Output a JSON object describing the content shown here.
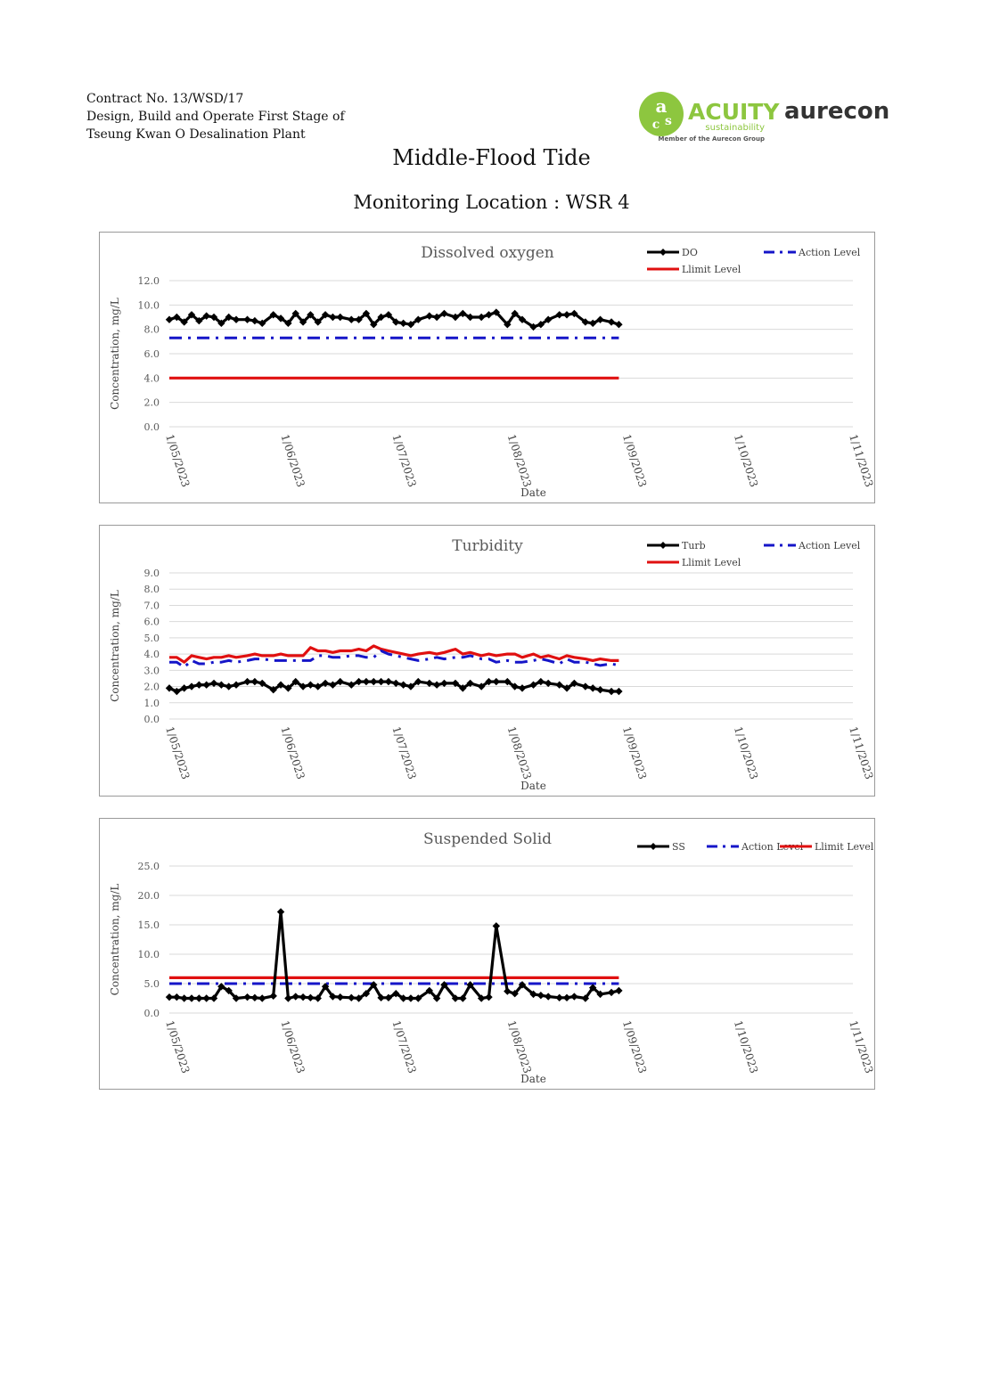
{
  "header": {
    "lines": [
      "Contract No. 13/WSD/17",
      "Design, Build and Operate First Stage of",
      "Tseung Kwan O Desalination Plant"
    ],
    "logo_left_text": "ACUITY",
    "logo_left_sub": "sustainability",
    "logo_left_tag": "Member of the Aurecon Group",
    "logo_right_text": "aurecon",
    "colors": {
      "acuity_green": "#8dc63f",
      "aurecon_dark": "#333333"
    }
  },
  "page": {
    "title": "Middle-Flood Tide",
    "subtitle": "Monitoring Location : WSR 4"
  },
  "chart_data": [
    {
      "type": "line",
      "title": "Dissolved oxygen",
      "xlabel": "Date",
      "ylabel": "Concentration, mg/L",
      "ylim": [
        0,
        12
      ],
      "yticks": [
        "0.0",
        "2.0",
        "4.0",
        "6.0",
        "8.0",
        "10.0",
        "12.0"
      ],
      "xlim": [
        "2023-05-01",
        "2023-11-01"
      ],
      "xticks": [
        "1/05/2023",
        "1/06/2023",
        "1/07/2023",
        "1/08/2023",
        "1/09/2023",
        "1/10/2023",
        "1/11/2023"
      ],
      "x_dates": [
        "2023-05-01",
        "2023-05-03",
        "2023-05-05",
        "2023-05-07",
        "2023-05-09",
        "2023-05-11",
        "2023-05-13",
        "2023-05-15",
        "2023-05-17",
        "2023-05-19",
        "2023-05-22",
        "2023-05-24",
        "2023-05-26",
        "2023-05-29",
        "2023-05-31",
        "2023-06-02",
        "2023-06-04",
        "2023-06-06",
        "2023-06-08",
        "2023-06-10",
        "2023-06-12",
        "2023-06-14",
        "2023-06-16",
        "2023-06-19",
        "2023-06-21",
        "2023-06-23",
        "2023-06-25",
        "2023-06-27",
        "2023-06-29",
        "2023-07-01",
        "2023-07-03",
        "2023-07-05",
        "2023-07-07",
        "2023-07-10",
        "2023-07-12",
        "2023-07-14",
        "2023-07-17",
        "2023-07-19",
        "2023-07-21",
        "2023-07-24",
        "2023-07-26",
        "2023-07-28",
        "2023-07-31",
        "2023-08-02",
        "2023-08-04",
        "2023-08-07",
        "2023-08-09",
        "2023-08-11",
        "2023-08-14",
        "2023-08-16",
        "2023-08-18",
        "2023-08-21",
        "2023-08-23",
        "2023-08-25",
        "2023-08-28",
        "2023-08-30"
      ],
      "legend": [
        "DO",
        "Action Level",
        "Llimit Level"
      ],
      "legend_position": "top-right",
      "grid": "horizontal",
      "series": [
        {
          "name": "DO",
          "color": "#000000",
          "style": "solid-marker",
          "values": [
            8.8,
            9.0,
            8.6,
            9.2,
            8.7,
            9.1,
            9.0,
            8.5,
            9.0,
            8.8,
            8.8,
            8.7,
            8.5,
            9.2,
            8.9,
            8.5,
            9.3,
            8.6,
            9.2,
            8.6,
            9.2,
            9.0,
            9.0,
            8.8,
            8.8,
            9.3,
            8.4,
            9.0,
            9.2,
            8.6,
            8.5,
            8.4,
            8.8,
            9.1,
            9.0,
            9.3,
            9.0,
            9.3,
            9.0,
            9.0,
            9.2,
            9.4,
            8.4,
            9.3,
            8.8,
            8.2,
            8.4,
            8.8,
            9.2,
            9.2,
            9.3,
            8.6,
            8.5,
            8.8,
            8.6,
            8.4
          ]
        },
        {
          "name": "Action Level",
          "color": "#1515c8",
          "style": "dashdot",
          "constant": 7.3,
          "range": [
            "2023-05-01",
            "2023-08-30"
          ]
        },
        {
          "name": "Llimit Level",
          "color": "#e01010",
          "style": "solid",
          "constant": 4.0,
          "range": [
            "2023-05-01",
            "2023-08-30"
          ]
        }
      ]
    },
    {
      "type": "line",
      "title": "Turbidity",
      "xlabel": "Date",
      "ylabel": "Concentration, mg/L",
      "ylim": [
        0,
        9
      ],
      "yticks": [
        "0.0",
        "1.0",
        "2.0",
        "3.0",
        "4.0",
        "5.0",
        "6.0",
        "7.0",
        "8.0",
        "9.0"
      ],
      "xlim": [
        "2023-05-01",
        "2023-11-01"
      ],
      "xticks": [
        "1/05/2023",
        "1/06/2023",
        "1/07/2023",
        "1/08/2023",
        "1/09/2023",
        "1/10/2023",
        "1/11/2023"
      ],
      "x_dates": [
        "2023-05-01",
        "2023-05-03",
        "2023-05-05",
        "2023-05-07",
        "2023-05-09",
        "2023-05-11",
        "2023-05-13",
        "2023-05-15",
        "2023-05-17",
        "2023-05-19",
        "2023-05-22",
        "2023-05-24",
        "2023-05-26",
        "2023-05-29",
        "2023-05-31",
        "2023-06-02",
        "2023-06-04",
        "2023-06-06",
        "2023-06-08",
        "2023-06-10",
        "2023-06-12",
        "2023-06-14",
        "2023-06-16",
        "2023-06-19",
        "2023-06-21",
        "2023-06-23",
        "2023-06-25",
        "2023-06-27",
        "2023-06-29",
        "2023-07-01",
        "2023-07-03",
        "2023-07-05",
        "2023-07-07",
        "2023-07-10",
        "2023-07-12",
        "2023-07-14",
        "2023-07-17",
        "2023-07-19",
        "2023-07-21",
        "2023-07-24",
        "2023-07-26",
        "2023-07-28",
        "2023-07-31",
        "2023-08-02",
        "2023-08-04",
        "2023-08-07",
        "2023-08-09",
        "2023-08-11",
        "2023-08-14",
        "2023-08-16",
        "2023-08-18",
        "2023-08-21",
        "2023-08-23",
        "2023-08-25",
        "2023-08-28",
        "2023-08-30"
      ],
      "legend": [
        "Turb",
        "Action Level",
        "Llimit Level"
      ],
      "legend_position": "top-right",
      "grid": "horizontal",
      "series": [
        {
          "name": "Turb",
          "color": "#000000",
          "style": "solid-marker",
          "values": [
            1.9,
            1.7,
            1.9,
            2.0,
            2.1,
            2.1,
            2.2,
            2.1,
            2.0,
            2.1,
            2.3,
            2.3,
            2.2,
            1.8,
            2.1,
            1.9,
            2.3,
            2.0,
            2.1,
            2.0,
            2.2,
            2.1,
            2.3,
            2.1,
            2.3,
            2.3,
            2.3,
            2.3,
            2.3,
            2.2,
            2.1,
            2.0,
            2.3,
            2.2,
            2.1,
            2.2,
            2.2,
            1.9,
            2.2,
            2.0,
            2.3,
            2.3,
            2.3,
            2.0,
            1.9,
            2.1,
            2.3,
            2.2,
            2.1,
            1.9,
            2.2,
            2.0,
            1.9,
            1.8,
            1.7,
            1.7
          ]
        },
        {
          "name": "Action Level",
          "color": "#1515c8",
          "style": "dashdot",
          "values": [
            3.5,
            3.5,
            3.2,
            3.6,
            3.4,
            3.4,
            3.5,
            3.5,
            3.6,
            3.5,
            3.6,
            3.7,
            3.7,
            3.6,
            3.6,
            3.6,
            3.6,
            3.6,
            3.6,
            3.9,
            3.9,
            3.8,
            3.8,
            3.9,
            3.9,
            3.8,
            3.8,
            4.2,
            4.0,
            3.9,
            3.8,
            3.7,
            3.6,
            3.7,
            3.8,
            3.7,
            3.8,
            3.8,
            3.9,
            3.7,
            3.7,
            3.5,
            3.6,
            3.5,
            3.5,
            3.6,
            3.7,
            3.6,
            3.4,
            3.7,
            3.5,
            3.5,
            3.4,
            3.3,
            3.4,
            3.3
          ]
        },
        {
          "name": "Llimit Level",
          "color": "#e01010",
          "style": "solid",
          "values": [
            3.8,
            3.8,
            3.5,
            3.9,
            3.8,
            3.7,
            3.8,
            3.8,
            3.9,
            3.8,
            3.9,
            4.0,
            3.9,
            3.9,
            4.0,
            3.9,
            3.9,
            3.9,
            4.4,
            4.2,
            4.2,
            4.1,
            4.2,
            4.2,
            4.3,
            4.2,
            4.5,
            4.3,
            4.2,
            4.1,
            4.0,
            3.9,
            4.0,
            4.1,
            4.0,
            4.1,
            4.3,
            4.0,
            4.1,
            3.9,
            4.0,
            3.9,
            4.0,
            4.0,
            3.8,
            4.0,
            3.8,
            3.9,
            3.7,
            3.9,
            3.8,
            3.7,
            3.6,
            3.7,
            3.6,
            3.6
          ]
        }
      ]
    },
    {
      "type": "line",
      "title": "Suspended Solid",
      "xlabel": "Date",
      "ylabel": "Concentration, mg/L",
      "ylim": [
        0,
        25
      ],
      "yticks": [
        "0.0",
        "5.0",
        "10.0",
        "15.0",
        "20.0",
        "25.0"
      ],
      "xlim": [
        "2023-05-01",
        "2023-11-01"
      ],
      "xticks": [
        "1/05/2023",
        "1/06/2023",
        "1/07/2023",
        "1/08/2023",
        "1/09/2023",
        "1/10/2023",
        "1/11/2023"
      ],
      "x_dates": [
        "2023-05-01",
        "2023-05-03",
        "2023-05-05",
        "2023-05-07",
        "2023-05-09",
        "2023-05-11",
        "2023-05-13",
        "2023-05-15",
        "2023-05-17",
        "2023-05-19",
        "2023-05-22",
        "2023-05-24",
        "2023-05-26",
        "2023-05-29",
        "2023-05-31",
        "2023-06-02",
        "2023-06-04",
        "2023-06-06",
        "2023-06-08",
        "2023-06-10",
        "2023-06-12",
        "2023-06-14",
        "2023-06-16",
        "2023-06-19",
        "2023-06-21",
        "2023-06-23",
        "2023-06-25",
        "2023-06-27",
        "2023-06-29",
        "2023-07-01",
        "2023-07-03",
        "2023-07-05",
        "2023-07-07",
        "2023-07-10",
        "2023-07-12",
        "2023-07-14",
        "2023-07-17",
        "2023-07-19",
        "2023-07-21",
        "2023-07-24",
        "2023-07-26",
        "2023-07-28",
        "2023-07-31",
        "2023-08-02",
        "2023-08-04",
        "2023-08-07",
        "2023-08-09",
        "2023-08-11",
        "2023-08-14",
        "2023-08-16",
        "2023-08-18",
        "2023-08-21",
        "2023-08-23",
        "2023-08-25",
        "2023-08-28",
        "2023-08-30"
      ],
      "legend": [
        "SS",
        "Action Level",
        "Llimit Level"
      ],
      "legend_position": "top-right",
      "grid": "horizontal",
      "series": [
        {
          "name": "SS",
          "color": "#000000",
          "style": "solid-marker",
          "values": [
            2.7,
            2.7,
            2.5,
            2.5,
            2.5,
            2.5,
            2.5,
            4.5,
            3.8,
            2.5,
            2.7,
            2.6,
            2.5,
            2.9,
            17.2,
            2.5,
            2.8,
            2.7,
            2.6,
            2.5,
            4.5,
            2.8,
            2.7,
            2.6,
            2.5,
            3.3,
            4.8,
            2.6,
            2.6,
            3.3,
            2.5,
            2.5,
            2.5,
            3.8,
            2.5,
            4.8,
            2.5,
            2.5,
            4.8,
            2.5,
            2.7,
            14.8,
            3.7,
            3.3,
            4.8,
            3.2,
            3.0,
            2.8,
            2.6,
            2.6,
            2.8,
            2.5,
            4.3,
            3.2,
            3.5,
            3.8
          ]
        },
        {
          "name": "Action Level",
          "color": "#1515c8",
          "style": "dashdot",
          "constant": 5.0,
          "range": [
            "2023-05-01",
            "2023-08-30"
          ]
        },
        {
          "name": "Llimit Level",
          "color": "#e01010",
          "style": "solid",
          "constant": 6.0,
          "range": [
            "2023-05-01",
            "2023-08-30"
          ]
        }
      ]
    }
  ]
}
